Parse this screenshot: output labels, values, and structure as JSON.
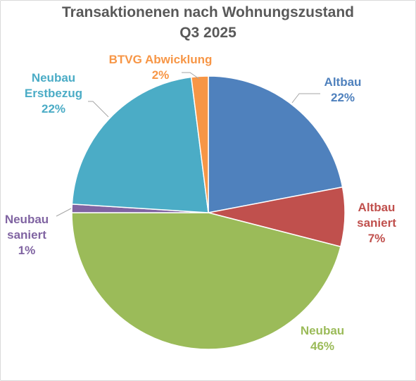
{
  "chart_data": {
    "type": "pie",
    "title": "Transaktionenen nach Wohnungszustand",
    "subtitle": "Q3 2025",
    "slices": [
      {
        "label_lines": [
          "Altbau"
        ],
        "value": 22,
        "value_label": "22%",
        "color": "#4f81bd"
      },
      {
        "label_lines": [
          "Altbau",
          "saniert"
        ],
        "value": 7,
        "value_label": "7%",
        "color": "#c0504d"
      },
      {
        "label_lines": [
          "Neubau"
        ],
        "value": 46,
        "value_label": "46%",
        "color": "#9bbb59"
      },
      {
        "label_lines": [
          "Neubau",
          "saniert"
        ],
        "value": 1,
        "value_label": "1%",
        "color": "#8064a2"
      },
      {
        "label_lines": [
          "Neubau",
          "Erstbezug"
        ],
        "value": 22,
        "value_label": "22%",
        "color": "#4bacc6"
      },
      {
        "label_lines": [
          "BTVG Abwicklung"
        ],
        "value": 2,
        "value_label": "2%",
        "color": "#f79646"
      }
    ],
    "legend": "none",
    "data_labels": "outside-with-leader-lines"
  }
}
